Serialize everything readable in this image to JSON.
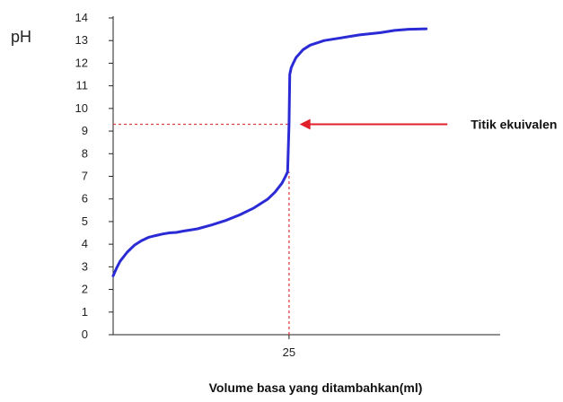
{
  "chart_data": {
    "type": "line",
    "title": "",
    "ylabel": "pH",
    "xlabel": "Volume basa yang ditambahkan(ml)",
    "ylim": [
      0,
      14
    ],
    "xlim": [
      0,
      55
    ],
    "yticks": [
      "0",
      "1",
      "2",
      "3",
      "4",
      "5",
      "6",
      "7",
      "8",
      "9",
      "10",
      "11",
      "12",
      "13",
      "14"
    ],
    "xticks": [
      {
        "value": 25,
        "label": "25"
      }
    ],
    "grid": false,
    "series": [
      {
        "color": "#2b2bd6",
        "x": [
          0,
          0.5,
          1,
          2,
          3,
          4,
          5,
          6,
          7,
          8,
          9,
          10,
          12,
          14,
          16,
          18,
          20,
          22,
          23,
          24,
          24.5,
          24.8,
          25,
          25.1,
          25.3,
          25.6,
          26,
          27,
          28,
          30,
          32,
          35,
          38,
          40,
          42,
          44.5
        ],
        "y": [
          2.6,
          2.95,
          3.25,
          3.65,
          3.95,
          4.15,
          4.3,
          4.38,
          4.45,
          4.5,
          4.52,
          4.58,
          4.68,
          4.85,
          5.05,
          5.3,
          5.6,
          6.0,
          6.3,
          6.7,
          7.0,
          7.2,
          9.3,
          11.5,
          11.8,
          12.0,
          12.25,
          12.6,
          12.8,
          13.0,
          13.1,
          13.25,
          13.35,
          13.45,
          13.5,
          13.52
        ]
      }
    ],
    "reference_lines": [
      {
        "orientation": "horizontal",
        "value": 9.3,
        "x_from": 0,
        "x_to": 25,
        "color": "#e04040",
        "style": "dotted"
      },
      {
        "orientation": "vertical",
        "value": 25,
        "y_from": 0,
        "y_to": 7.2,
        "color": "#e04040",
        "style": "dotted"
      }
    ],
    "annotation": {
      "text": "Titik ekuivalen",
      "arrow_color": "#e0202a",
      "arrow_tip": {
        "x": 26.5,
        "y": 9.3
      },
      "arrow_tail": {
        "x": 47.5,
        "y": 9.3
      }
    }
  }
}
